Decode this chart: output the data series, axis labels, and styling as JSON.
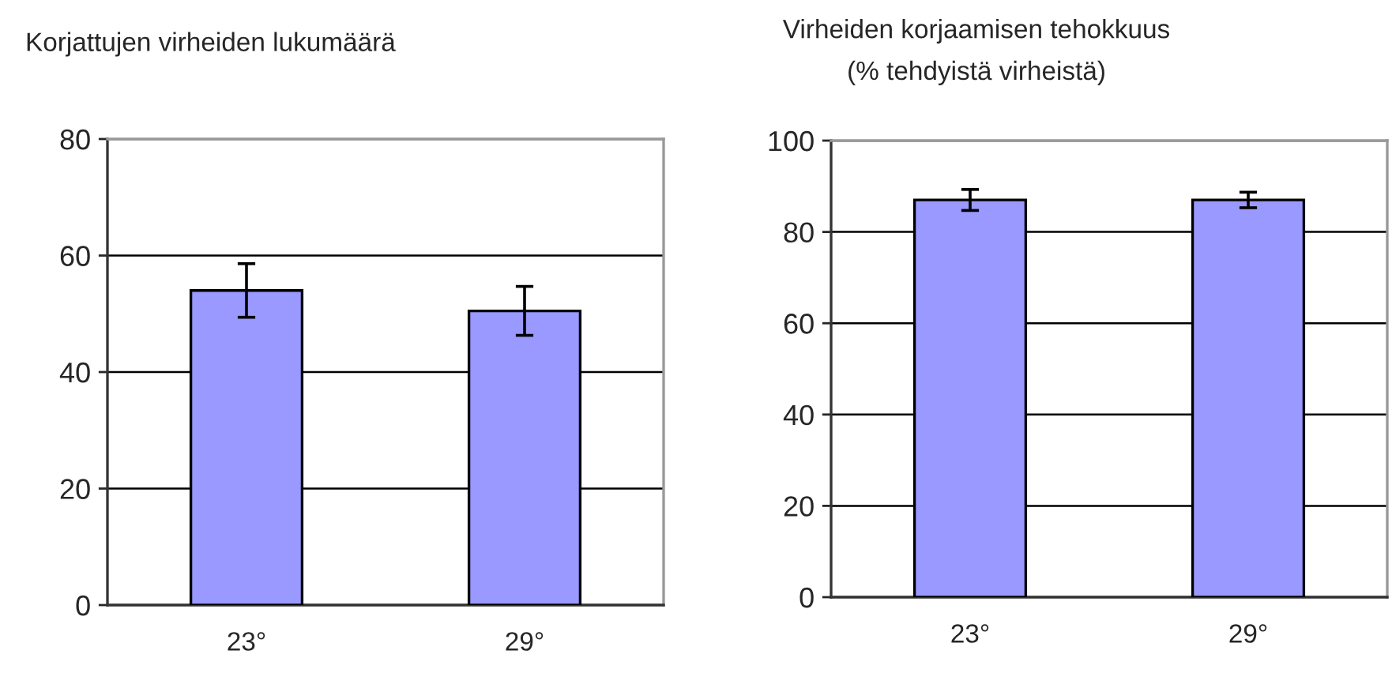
{
  "chart_data": [
    {
      "type": "bar",
      "title": "Korjattujen virheiden lukumäärä",
      "categories": [
        "23°",
        "29°"
      ],
      "values": [
        54,
        50.5
      ],
      "errors": [
        4.6,
        4.2
      ],
      "color": "#9999ff",
      "ylim": [
        0,
        80
      ],
      "yticks": [
        0,
        20,
        40,
        60,
        80
      ],
      "grid": "y"
    },
    {
      "type": "bar",
      "title": "Virheiden korjaamisen tehokkuus\n(% tehdyistä virheistä)",
      "categories": [
        "23°",
        "29°"
      ],
      "values": [
        87,
        87
      ],
      "errors": [
        2.3,
        1.7
      ],
      "color": "#9999ff",
      "ylim": [
        0,
        100
      ],
      "yticks": [
        0,
        20,
        40,
        60,
        80,
        100
      ],
      "grid": "y"
    }
  ]
}
